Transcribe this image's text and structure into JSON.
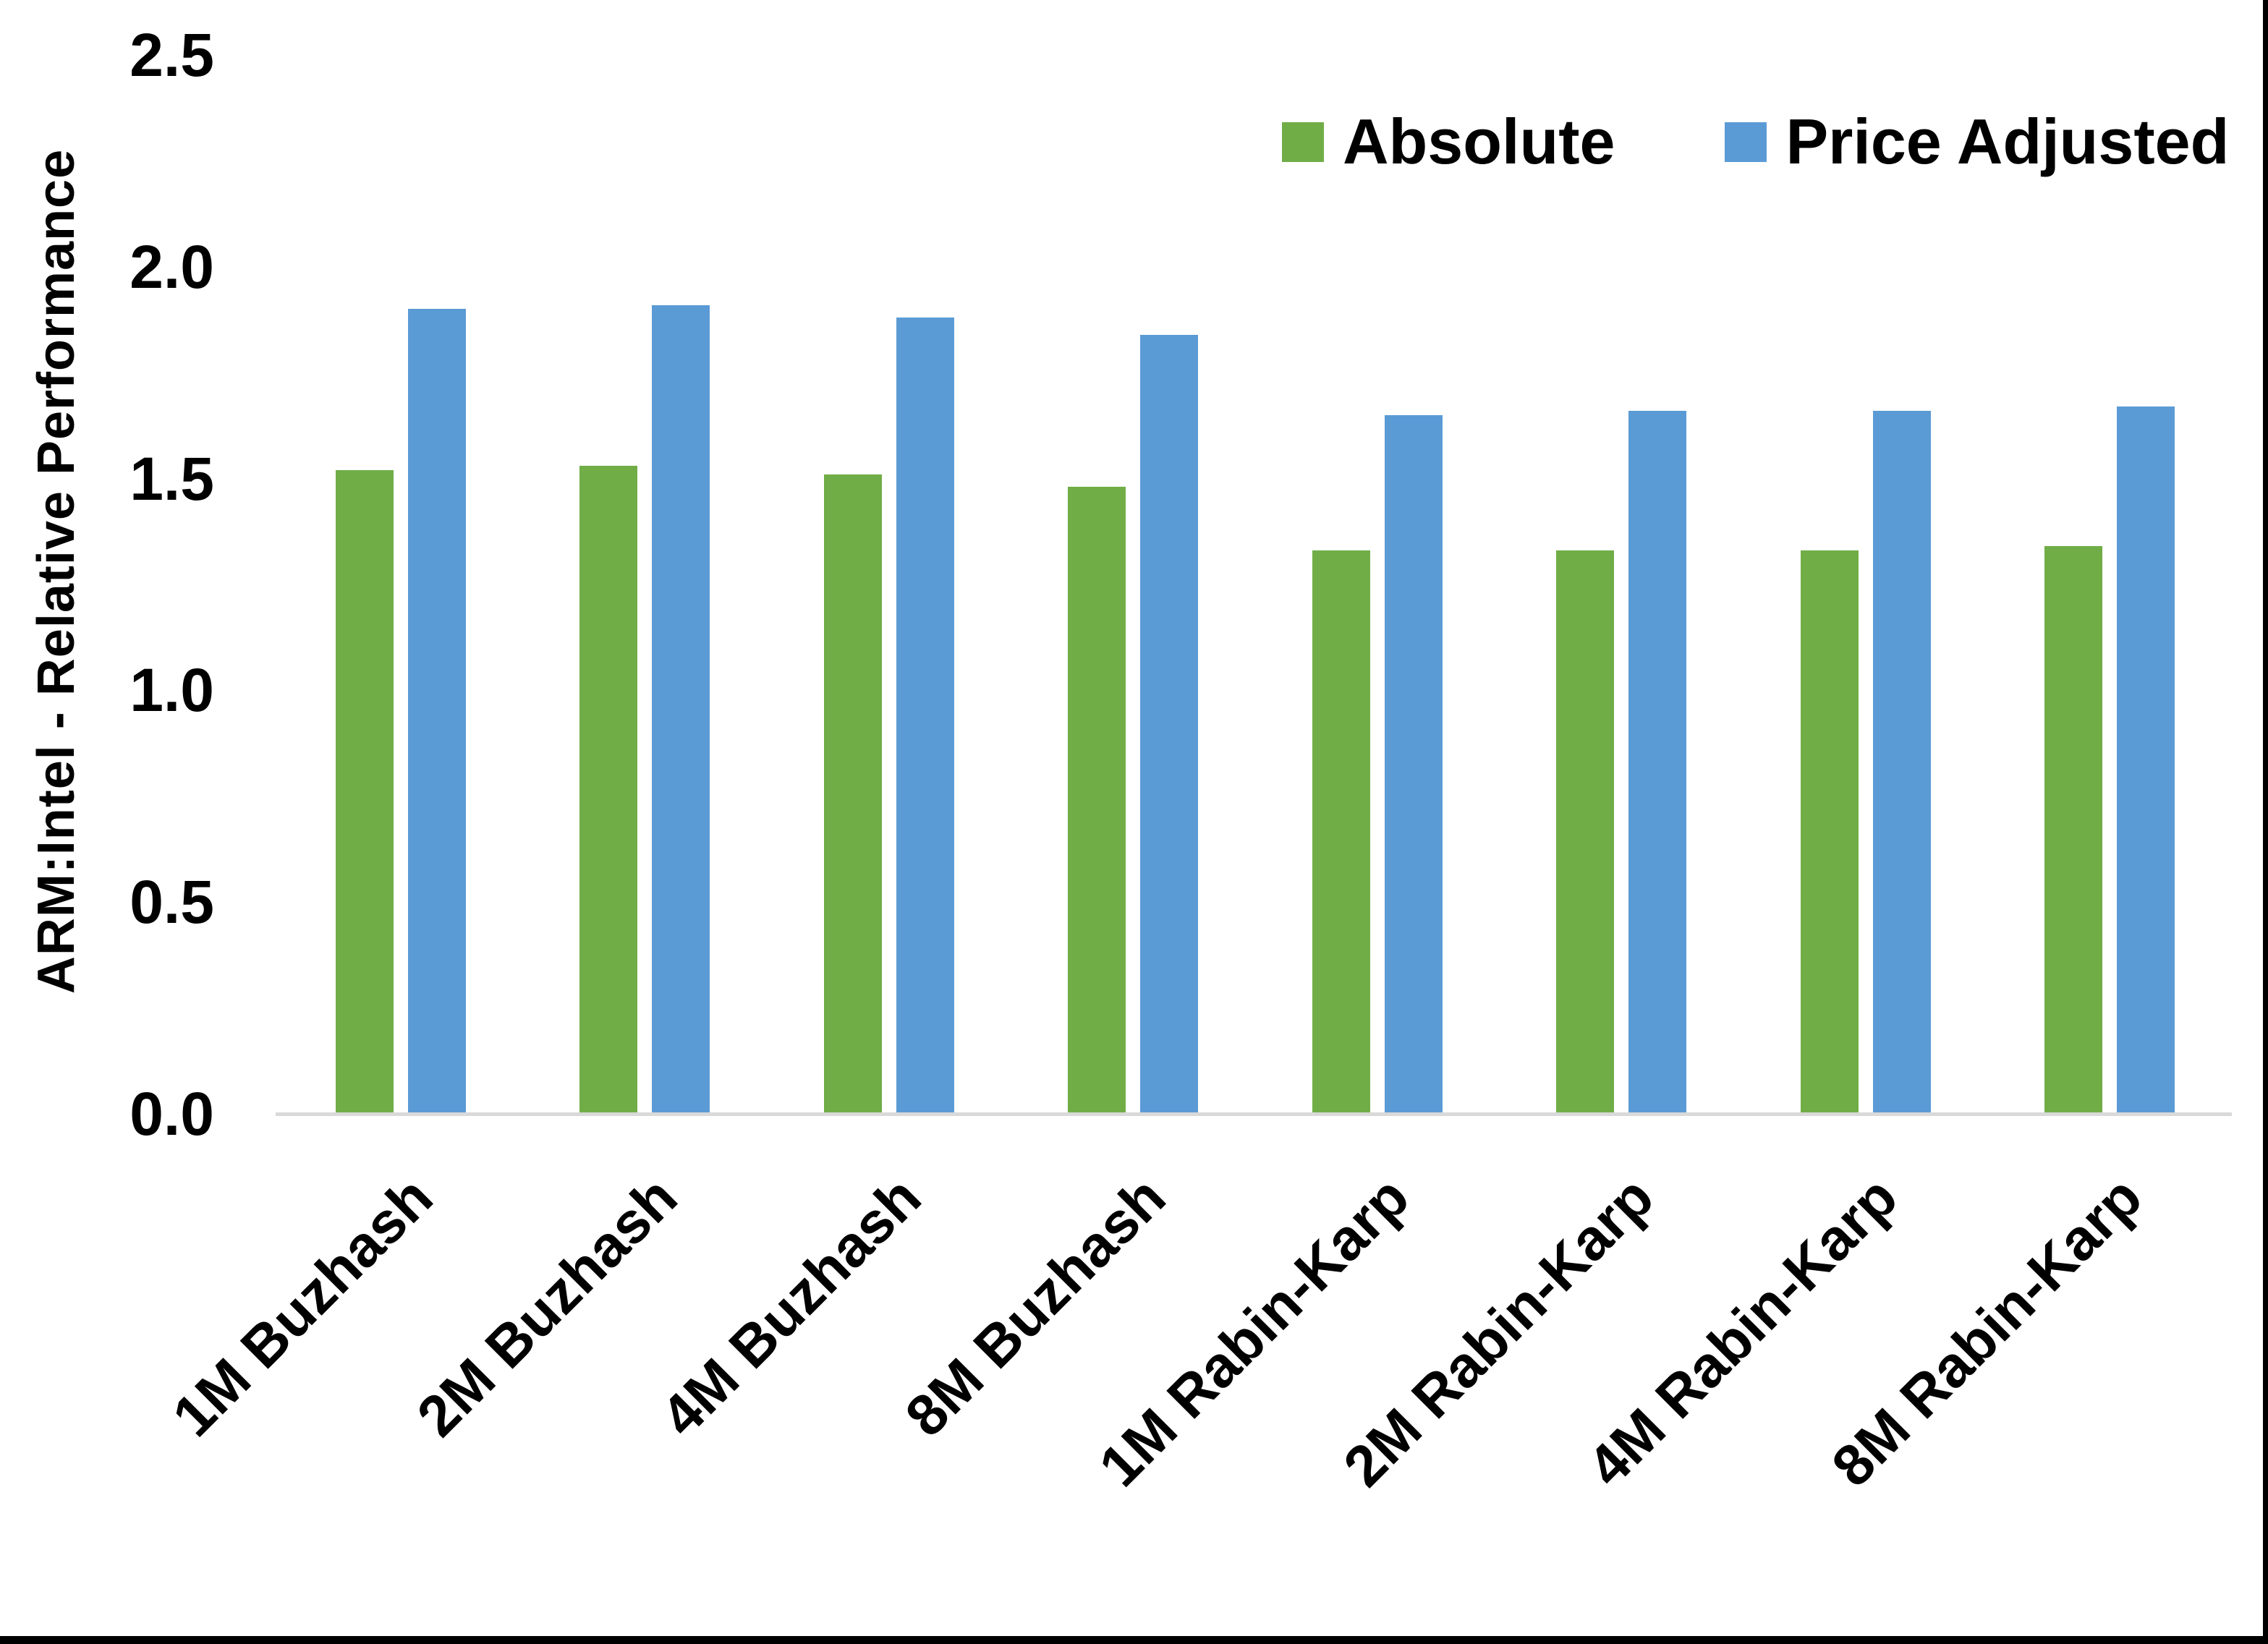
{
  "chart_data": {
    "type": "bar",
    "ylabel": "ARM:Intel - Relative Performance",
    "xlabel": "",
    "ylim": [
      0,
      2.5
    ],
    "ytick_labels": [
      "0.0",
      "0.5",
      "1.0",
      "1.5",
      "2.0",
      "2.5"
    ],
    "grid": false,
    "legend_position": "top-right",
    "categories": [
      "1M Buzhash",
      "2M Buzhash",
      "4M Buzhash",
      "8M Buzhash",
      "1M Rabin-Karp",
      "2M Rabin-Karp",
      "4M Rabin-Karp",
      "8M Rabin-Karp"
    ],
    "series": [
      {
        "name": "Absolute",
        "color": "#70AD47",
        "values": [
          1.52,
          1.53,
          1.51,
          1.48,
          1.33,
          1.33,
          1.33,
          1.34
        ]
      },
      {
        "name": "Price Adjusted",
        "color": "#5B9BD5",
        "values": [
          1.9,
          1.91,
          1.88,
          1.84,
          1.65,
          1.66,
          1.66,
          1.67
        ]
      }
    ],
    "colors": {
      "axis_line": "#D9D9D9",
      "text": "#000000",
      "background": "#FFFFFF",
      "frame_border": "#000000"
    }
  }
}
